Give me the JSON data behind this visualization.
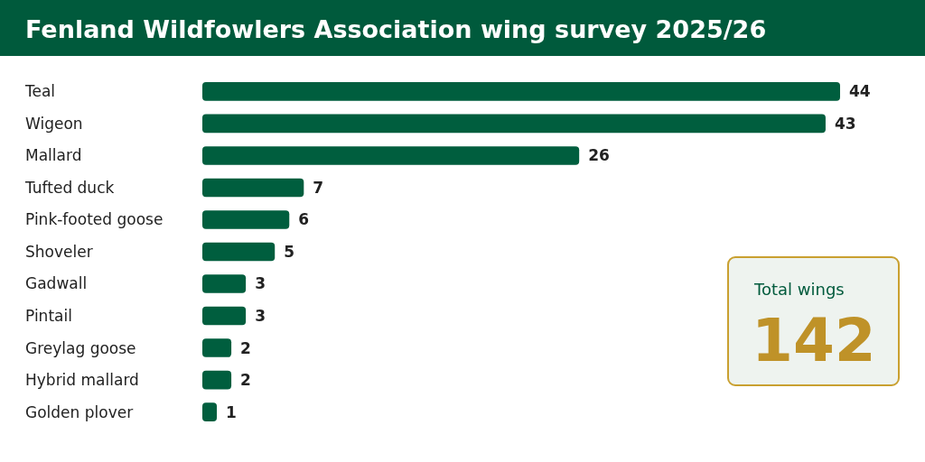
{
  "chart_data": [
    {
      "type": "bar",
      "orientation": "horizontal",
      "title": "Fenland Wildfowlers Association wing survey 2025/26",
      "categories": [
        "Teal",
        "Wigeon",
        "Mallard",
        "Tufted duck",
        "Pink-footed goose",
        "Shoveler",
        "Gadwall",
        "Pintail",
        "Greylag goose",
        "Hybrid mallard",
        "Golden plover"
      ],
      "values": [
        44,
        43,
        26,
        7,
        6,
        5,
        3,
        3,
        2,
        2,
        1
      ],
      "color": "#005e3e",
      "data_labels": true
    },
    {
      "type": "other",
      "title": "Total wings",
      "annotations": [
        "142"
      ]
    }
  ]
}
